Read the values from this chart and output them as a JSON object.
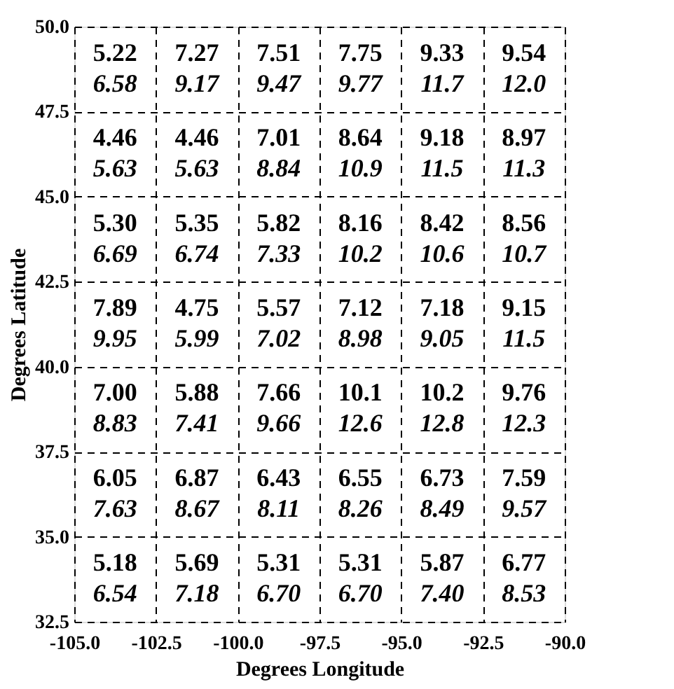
{
  "chart_data": {
    "type": "heatmap",
    "xlabel": "Degrees Longitude",
    "ylabel": "Degrees Latitude",
    "xlim": [
      -105,
      -90
    ],
    "ylim": [
      32.5,
      50
    ],
    "xticks": [
      {
        "value": -105,
        "label": "-105.0"
      },
      {
        "value": -102.5,
        "label": "-102.5"
      },
      {
        "value": -100,
        "label": "-100.0"
      },
      {
        "value": -97.5,
        "label": "-97.5"
      },
      {
        "value": -95,
        "label": "-95.0"
      },
      {
        "value": -92.5,
        "label": "-92.5"
      },
      {
        "value": -90,
        "label": "-90.0"
      }
    ],
    "yticks": [
      {
        "value": 32.5,
        "label": "32.5"
      },
      {
        "value": 35,
        "label": "35.0"
      },
      {
        "value": 37.5,
        "label": "37.5"
      },
      {
        "value": 40,
        "label": "40.0"
      },
      {
        "value": 42.5,
        "label": "42.5"
      },
      {
        "value": 45,
        "label": "45.0"
      },
      {
        "value": 47.5,
        "label": "47.5"
      },
      {
        "value": 50,
        "label": "50.0"
      }
    ],
    "grid": true,
    "cells": [
      [
        5.22,
        7.27,
        7.51,
        7.75,
        9.33,
        9.54
      ],
      [
        4.46,
        4.46,
        7.01,
        8.64,
        9.18,
        8.97
      ],
      [
        5.3,
        5.35,
        5.82,
        8.16,
        8.42,
        8.56
      ],
      [
        7.89,
        4.75,
        5.57,
        7.12,
        7.18,
        9.15
      ],
      [
        7.0,
        5.88,
        7.66,
        10.1,
        10.2,
        9.76
      ],
      [
        6.05,
        6.87,
        6.43,
        6.55,
        6.73,
        7.59
      ],
      [
        5.18,
        5.69,
        5.31,
        5.31,
        5.87,
        6.77
      ]
    ],
    "cell_labels": [
      [
        "5.22",
        "7.27",
        "7.51",
        "7.75",
        "9.33",
        "9.54"
      ],
      [
        "4.46",
        "4.46",
        "7.01",
        "8.64",
        "9.18",
        "8.97"
      ],
      [
        "5.30",
        "5.35",
        "5.82",
        "8.16",
        "8.42",
        "8.56"
      ],
      [
        "7.89",
        "4.75",
        "5.57",
        "7.12",
        "7.18",
        "9.15"
      ],
      [
        "7.00",
        "5.88",
        "7.66",
        "10.1",
        "10.2",
        "9.76"
      ],
      [
        "6.05",
        "6.87",
        "6.43",
        "6.55",
        "6.73",
        "7.59"
      ],
      [
        "5.18",
        "5.69",
        "5.31",
        "5.31",
        "5.87",
        "6.77"
      ]
    ],
    "annotations": [
      "6.58",
      "9.17",
      "9.47",
      "9.77",
      "11.7",
      "12.0",
      "5.63",
      "5.63",
      "8.84",
      "10.9",
      "11.5",
      "11.3",
      "6.69",
      "6.74",
      "7.33",
      "10.2",
      "10.6",
      "10.7",
      "9.95",
      "5.99",
      "7.02",
      "8.98",
      "9.05",
      "11.5",
      "8.83",
      "7.41",
      "9.66",
      "12.6",
      "12.8",
      "12.3",
      "7.63",
      "8.67",
      "8.11",
      "8.26",
      "8.49",
      "9.57",
      "6.54",
      "7.18",
      "6.70",
      "6.70",
      "7.40",
      "8.53"
    ]
  }
}
